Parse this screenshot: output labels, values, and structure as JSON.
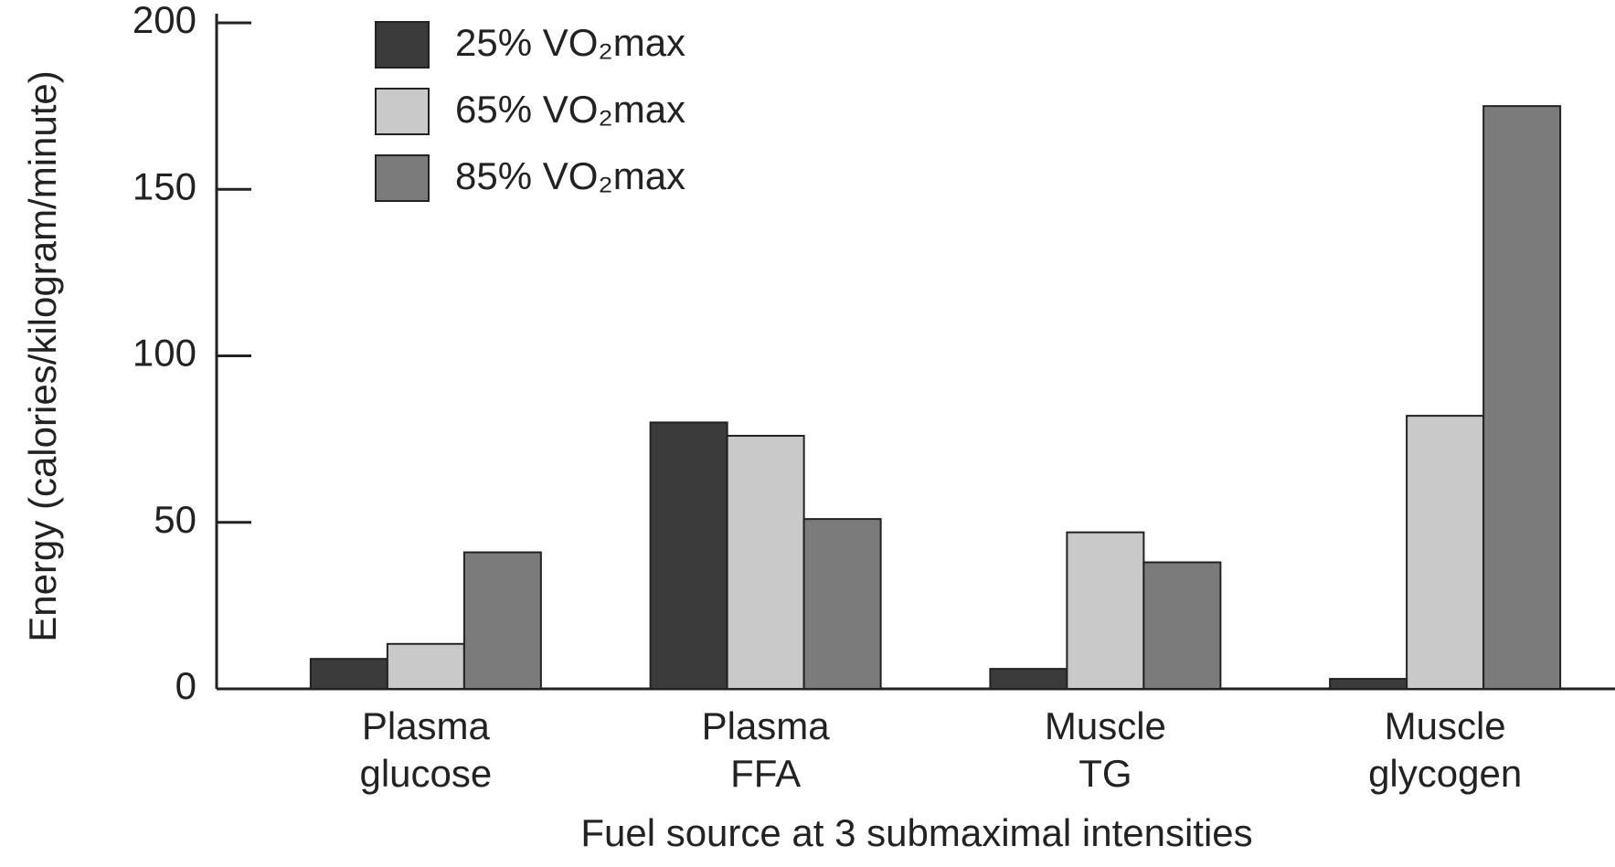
{
  "chart_data": {
    "type": "bar",
    "x_label": "Fuel source at 3 submaximal intensities",
    "y_label": "Energy (calories/kilogram/minute)",
    "categories": [
      [
        "Plasma",
        "glucose"
      ],
      [
        "Plasma",
        "FFA"
      ],
      [
        "Muscle",
        "TG"
      ],
      [
        "Muscle",
        "glycogen"
      ]
    ],
    "series": [
      {
        "name": "25% VO₂max",
        "color": "#3b3b3b",
        "values": [
          9,
          80,
          6,
          3
        ]
      },
      {
        "name": "65% VO₂max",
        "color": "#c9c9c9",
        "values": [
          13.5,
          76,
          47,
          82
        ]
      },
      {
        "name": "85% VO₂max",
        "color": "#7b7b7b",
        "values": [
          41,
          51,
          38,
          175
        ]
      }
    ],
    "ylim": [
      0,
      200
    ],
    "yticks": [
      0,
      50,
      100,
      150,
      200
    ],
    "legend": "upper left"
  }
}
